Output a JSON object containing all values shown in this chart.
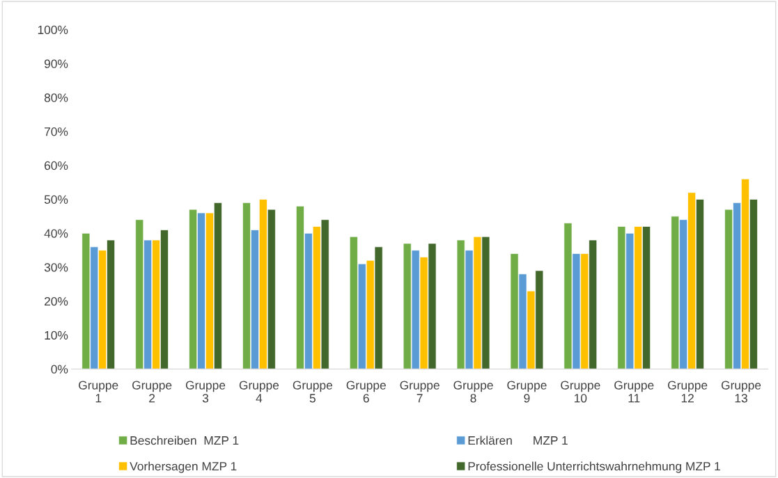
{
  "chart_data": {
    "type": "bar",
    "categories": [
      "Gruppe 1",
      "Gruppe 2",
      "Gruppe 3",
      "Gruppe 4",
      "Gruppe 5",
      "Gruppe 6",
      "Gruppe 7",
      "Gruppe 8",
      "Gruppe 9",
      "Gruppe 10",
      "Gruppe 11",
      "Gruppe 12",
      "Gruppe 13"
    ],
    "series": [
      {
        "name": "Beschreiben  MZP 1",
        "color": "#70ad47",
        "values": [
          40,
          44,
          47,
          49,
          48,
          39,
          37,
          38,
          34,
          43,
          42,
          45,
          47
        ]
      },
      {
        "name": "Erklären      MZP 1",
        "color": "#5b9bd5",
        "values": [
          36,
          38,
          46,
          41,
          40,
          31,
          35,
          35,
          28,
          34,
          40,
          44,
          49
        ]
      },
      {
        "name": "Vorhersagen MZP 1",
        "color": "#ffc000",
        "values": [
          35,
          38,
          46,
          50,
          42,
          32,
          33,
          39,
          23,
          34,
          42,
          52,
          56
        ]
      },
      {
        "name": "Professionelle Unterrichtswahrnehmung MZP 1",
        "color": "#43682b",
        "values": [
          38,
          41,
          49,
          47,
          44,
          36,
          37,
          39,
          29,
          38,
          42,
          50,
          50
        ]
      }
    ],
    "ylim": [
      0,
      100
    ],
    "yticks": [
      {
        "value": 0,
        "label": "0%"
      },
      {
        "value": 10,
        "label": "10%"
      },
      {
        "value": 20,
        "label": "20%"
      },
      {
        "value": 30,
        "label": "30%"
      },
      {
        "value": 40,
        "label": "40%"
      },
      {
        "value": 50,
        "label": "50%"
      },
      {
        "value": 60,
        "label": "60%"
      },
      {
        "value": 70,
        "label": "70%"
      },
      {
        "value": 80,
        "label": "80%"
      },
      {
        "value": 90,
        "label": "90%"
      },
      {
        "value": 100,
        "label": "100%"
      }
    ],
    "grid": false,
    "legend": "bottom"
  }
}
